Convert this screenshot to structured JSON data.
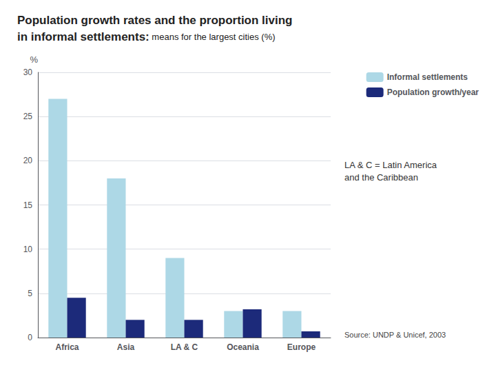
{
  "chart_data": {
    "type": "bar",
    "title": "Population growth rates and the proportion living\nin informal settlements:",
    "subtitle": " means for the largest cities (%)",
    "ylabel": "%",
    "categories": [
      "Africa",
      "Asia",
      "LA & C",
      "Oceania",
      "Europe"
    ],
    "series": [
      {
        "name": "Informal settlements",
        "color": "#add8e6",
        "values": [
          27,
          18,
          9,
          3,
          3
        ]
      },
      {
        "name": "Population growth/year",
        "color": "#1c2a7a",
        "values": [
          4.5,
          2,
          2,
          3.2,
          0.7
        ]
      }
    ],
    "ylim": [
      0,
      30
    ],
    "yticks": [
      0,
      5,
      10,
      15,
      20,
      25,
      30
    ],
    "grid": true,
    "legend": "upper right",
    "annotations": [
      "LA & C = Latin America\nand the Caribbean",
      "Source: UNDP & Unicef, 2003"
    ]
  }
}
